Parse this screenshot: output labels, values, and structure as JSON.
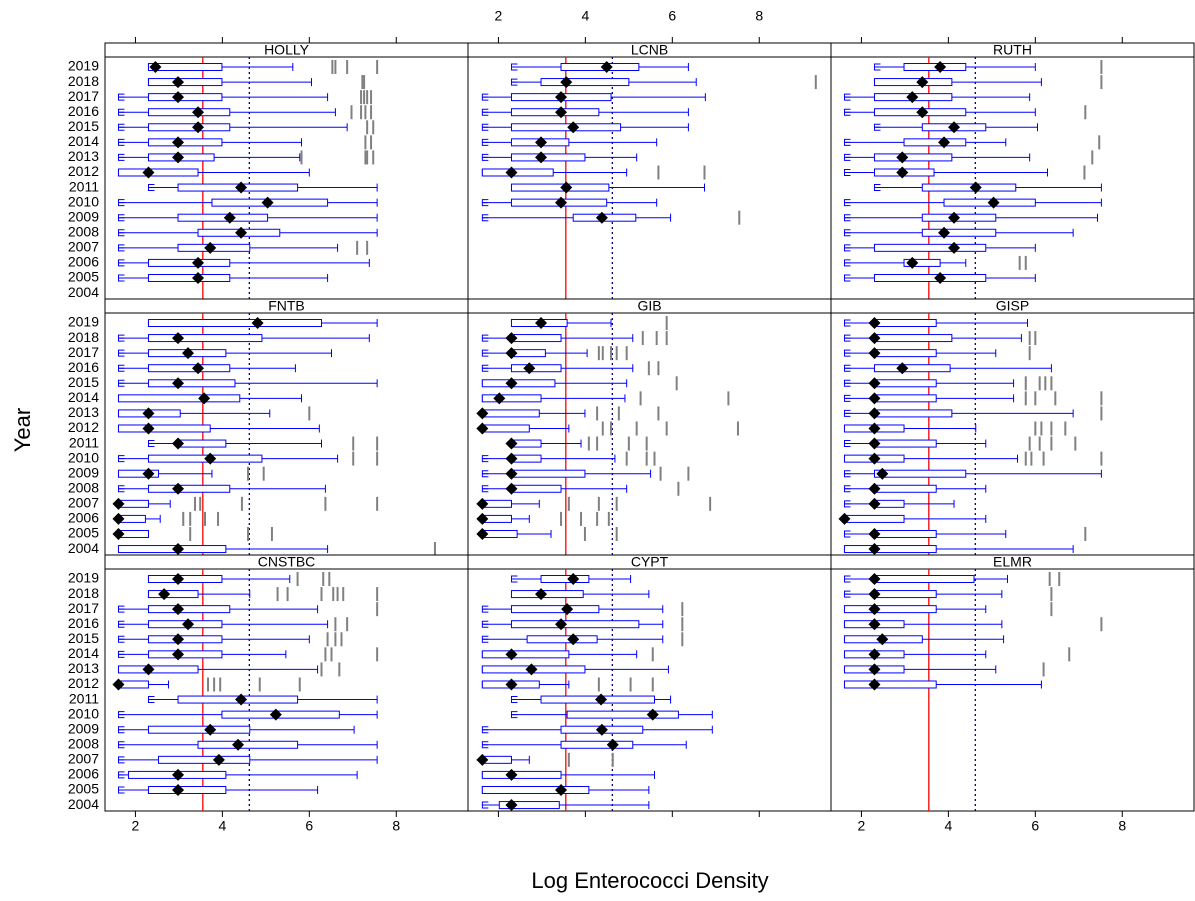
{
  "chart_data": {
    "type": "box",
    "x_label": "Log Enterococci Density",
    "y_label": "Year",
    "categories": [
      "2019",
      "2018",
      "2017",
      "2016",
      "2015",
      "2014",
      "2013",
      "2012",
      "2011",
      "2010",
      "2009",
      "2008",
      "2007",
      "2006",
      "2005",
      "2004"
    ],
    "xlim": [
      1.3,
      9.65
    ],
    "xticks": [
      2,
      4,
      6,
      8
    ],
    "box_color": "#0000ff",
    "median_color": "#000000",
    "outlier_color": "#808080",
    "reference_lines": [
      {
        "value": 3.55,
        "color": "#ff0000"
      },
      {
        "value": 4.62,
        "color": "#00008b",
        "dash": "2,3"
      }
    ],
    "panels": [
      {
        "title": "HOLLY",
        "whisker_low": [
          2.3,
          2.3,
          1.61,
          1.61,
          1.61,
          1.61,
          1.61,
          1.61,
          2.3,
          1.61,
          1.61,
          1.61,
          1.61,
          1.61,
          1.61,
          null
        ],
        "q1": [
          2.3,
          2.3,
          2.3,
          2.3,
          2.3,
          2.3,
          2.3,
          1.61,
          2.98,
          3.76,
          2.98,
          3.44,
          2.98,
          2.3,
          2.3,
          null
        ],
        "median": [
          2.46,
          2.98,
          2.98,
          3.44,
          3.44,
          2.98,
          2.98,
          2.3,
          4.43,
          5.04,
          4.17,
          4.43,
          3.72,
          3.44,
          3.44,
          null
        ],
        "q3": [
          3.99,
          3.99,
          3.99,
          4.17,
          4.17,
          3.99,
          3.81,
          3.44,
          5.73,
          6.42,
          5.04,
          5.32,
          4.63,
          4.17,
          4.17,
          null
        ],
        "whisker_high": [
          5.62,
          6.05,
          6.42,
          6.6,
          6.87,
          5.82,
          5.78,
          6.0,
          7.56,
          7.56,
          7.56,
          7.56,
          6.65,
          7.38,
          6.42,
          null
        ],
        "outliers": [
          [
            6.53,
            6.6,
            6.87,
            7.56
          ],
          [
            7.22,
            7.26
          ],
          [
            7.19,
            7.26,
            7.33,
            7.42
          ],
          [
            6.97,
            7.19,
            7.29,
            7.42
          ],
          [
            7.33,
            7.47
          ],
          [
            7.29,
            7.42
          ],
          [
            5.82,
            7.29,
            7.33,
            7.47
          ],
          [],
          [],
          [],
          [],
          [],
          [
            7.1,
            7.33
          ],
          [],
          [],
          []
        ]
      },
      {
        "title": "LCNB",
        "whisker_low": [
          2.3,
          2.3,
          1.63,
          1.63,
          1.63,
          1.63,
          1.63,
          1.63,
          2.3,
          1.63,
          1.63,
          null,
          null,
          null,
          null,
          null
        ],
        "q1": [
          3.44,
          2.98,
          2.3,
          2.3,
          2.3,
          2.3,
          2.3,
          1.63,
          2.3,
          2.3,
          3.72,
          null,
          null,
          null,
          null,
          null
        ],
        "median": [
          4.49,
          3.56,
          3.44,
          3.44,
          3.72,
          2.98,
          2.98,
          2.3,
          3.56,
          3.44,
          4.38,
          null,
          null,
          null,
          null,
          null
        ],
        "q3": [
          5.23,
          5.0,
          4.59,
          4.31,
          4.81,
          3.62,
          3.99,
          3.26,
          4.54,
          4.49,
          5.16,
          null,
          null,
          null,
          null,
          null
        ],
        "whisker_high": [
          6.37,
          6.55,
          6.76,
          6.37,
          6.37,
          5.64,
          5.18,
          4.95,
          6.74,
          5.64,
          5.96,
          null,
          null,
          null,
          null,
          null
        ],
        "outliers": [
          [],
          [
            9.3
          ],
          [],
          [],
          [],
          [],
          [],
          [
            5.68,
            6.74
          ],
          [],
          [],
          [
            7.54
          ],
          [],
          [],
          [],
          [],
          []
        ]
      },
      {
        "title": "RUTH",
        "whisker_low": [
          2.3,
          2.3,
          1.61,
          1.61,
          2.3,
          1.61,
          1.61,
          1.61,
          2.3,
          1.61,
          1.61,
          1.61,
          1.61,
          1.61,
          1.61,
          null
        ],
        "q1": [
          2.98,
          2.3,
          2.3,
          2.3,
          3.4,
          2.98,
          2.3,
          2.3,
          3.4,
          3.9,
          3.4,
          3.4,
          2.3,
          2.98,
          2.3,
          null
        ],
        "median": [
          3.81,
          3.4,
          3.17,
          3.4,
          4.13,
          3.9,
          2.94,
          2.94,
          4.63,
          5.04,
          4.13,
          3.9,
          4.13,
          3.17,
          3.81,
          null
        ],
        "q3": [
          4.4,
          4.08,
          4.08,
          4.4,
          4.86,
          4.4,
          4.08,
          3.67,
          5.55,
          6.0,
          5.09,
          5.09,
          4.86,
          3.81,
          4.86,
          null
        ],
        "whisker_high": [
          6.0,
          6.14,
          5.87,
          6.0,
          6.05,
          5.32,
          5.87,
          6.28,
          7.52,
          7.52,
          7.43,
          6.87,
          6.0,
          4.4,
          6.0,
          null
        ],
        "outliers": [
          [
            7.52
          ],
          [
            7.52
          ],
          [],
          [
            7.15
          ],
          [],
          [
            7.47
          ],
          [
            7.31
          ],
          [
            7.13
          ],
          [],
          [],
          [],
          [],
          [],
          [
            5.64,
            5.78
          ],
          [],
          []
        ]
      },
      {
        "title": "FNTB",
        "whisker_low": [
          2.3,
          1.61,
          1.61,
          1.61,
          1.61,
          1.61,
          1.61,
          1.61,
          2.3,
          1.61,
          1.61,
          1.61,
          1.61,
          1.61,
          1.61,
          1.61
        ],
        "q1": [
          2.3,
          2.3,
          2.3,
          2.3,
          2.3,
          1.61,
          1.61,
          1.61,
          2.98,
          2.3,
          1.61,
          2.3,
          1.61,
          1.61,
          1.61,
          1.61
        ],
        "median": [
          4.81,
          2.98,
          3.21,
          3.44,
          2.98,
          3.58,
          2.3,
          2.3,
          2.98,
          3.72,
          2.3,
          2.98,
          1.61,
          1.61,
          1.61,
          2.98
        ],
        "q3": [
          6.28,
          4.91,
          4.08,
          4.17,
          4.29,
          4.4,
          3.03,
          3.72,
          4.08,
          4.91,
          2.53,
          4.17,
          2.3,
          2.23,
          2.3,
          4.08
        ],
        "whisker_high": [
          7.56,
          7.38,
          6.51,
          5.68,
          7.56,
          5.82,
          5.09,
          6.23,
          6.28,
          6.65,
          3.76,
          6.37,
          2.8,
          2.57,
          2.3,
          6.42
        ],
        "outliers": [
          [],
          [],
          [],
          [],
          [],
          [],
          [
            6.0
          ],
          [],
          [
            7.01,
            7.56
          ],
          [
            7.01,
            7.56
          ],
          [
            4.59,
            4.95
          ],
          [],
          [
            3.37,
            3.49,
            4.45,
            6.37,
            7.56
          ],
          [
            3.1,
            3.26,
            3.6,
            3.9
          ],
          [
            3.26,
            4.59,
            5.14
          ],
          [
            8.89
          ]
        ]
      },
      {
        "title": "GIB",
        "whisker_low": [
          2.3,
          1.63,
          1.63,
          1.63,
          1.63,
          1.63,
          1.63,
          1.63,
          2.3,
          1.63,
          1.63,
          1.63,
          1.63,
          1.63,
          1.63,
          null
        ],
        "q1": [
          2.3,
          2.3,
          2.3,
          2.3,
          1.63,
          1.63,
          1.63,
          1.63,
          2.3,
          2.3,
          2.3,
          2.3,
          1.63,
          1.63,
          1.63,
          null
        ],
        "median": [
          2.98,
          2.3,
          2.3,
          2.71,
          2.3,
          2.02,
          1.63,
          1.63,
          2.3,
          2.3,
          2.3,
          2.3,
          1.63,
          1.63,
          1.63,
          null
        ],
        "q3": [
          3.58,
          3.44,
          3.08,
          3.44,
          3.3,
          2.98,
          2.94,
          2.71,
          2.98,
          2.98,
          3.99,
          3.44,
          2.3,
          2.3,
          2.43,
          null
        ],
        "whisker_high": [
          4.59,
          5.09,
          4.04,
          5.09,
          4.95,
          4.91,
          3.99,
          3.62,
          3.9,
          4.68,
          5.5,
          4.95,
          2.94,
          2.71,
          3.21,
          null
        ],
        "outliers": [
          [
            5.87
          ],
          [
            5.32,
            5.64,
            5.87
          ],
          [
            4.31,
            4.4,
            4.59,
            4.72,
            4.95
          ],
          [
            5.46,
            5.68
          ],
          [
            6.1
          ],
          [
            5.27,
            7.29
          ],
          [
            4.27,
            4.77,
            5.68
          ],
          [
            4.4,
            4.59,
            5.18,
            5.87,
            7.51
          ],
          [
            4.08,
            4.27,
            5.0,
            5.41
          ],
          [
            4.95,
            5.41,
            5.59
          ],
          [
            5.73,
            6.37
          ],
          [
            6.14
          ],
          [
            3.62,
            4.31,
            4.72,
            6.87
          ],
          [
            3.44,
            3.9,
            4.27,
            4.54
          ],
          [
            3.99,
            4.72
          ],
          []
        ]
      },
      {
        "title": "GISP",
        "whisker_low": [
          1.61,
          1.61,
          1.61,
          1.61,
          1.61,
          1.61,
          1.61,
          1.61,
          1.61,
          1.61,
          1.61,
          1.61,
          1.61,
          1.61,
          1.61,
          1.61
        ],
        "q1": [
          2.3,
          2.3,
          2.3,
          2.3,
          2.3,
          2.3,
          2.3,
          1.61,
          2.3,
          1.61,
          2.3,
          2.3,
          2.3,
          1.61,
          2.3,
          1.61
        ],
        "median": [
          2.3,
          2.3,
          2.3,
          2.94,
          2.3,
          2.3,
          2.3,
          2.3,
          2.3,
          2.3,
          2.48,
          2.3,
          2.3,
          1.61,
          2.3,
          2.3
        ],
        "q3": [
          3.72,
          4.08,
          3.72,
          4.04,
          3.72,
          3.72,
          4.08,
          2.98,
          3.72,
          2.98,
          4.4,
          3.72,
          2.98,
          2.98,
          3.72,
          3.72
        ],
        "whisker_high": [
          5.82,
          5.68,
          5.09,
          6.37,
          5.5,
          5.5,
          6.87,
          4.63,
          4.86,
          5.59,
          7.52,
          4.86,
          4.13,
          4.86,
          5.32,
          6.87
        ],
        "outliers": [
          [],
          [
            5.87,
            6.0
          ],
          [
            5.87
          ],
          [],
          [
            5.78,
            6.1,
            6.23,
            6.37
          ],
          [
            5.78,
            6.0,
            6.46,
            7.52
          ],
          [
            7.52
          ],
          [
            6.0,
            6.14,
            6.37,
            6.69
          ],
          [
            5.87,
            6.1,
            6.37,
            6.92
          ],
          [
            5.78,
            5.91,
            6.19,
            7.52
          ],
          [],
          [],
          [],
          [],
          [
            7.15
          ],
          []
        ]
      },
      {
        "title": "CNSTBC",
        "whisker_low": [
          2.3,
          2.3,
          1.61,
          1.61,
          1.61,
          1.61,
          1.61,
          1.61,
          2.3,
          1.61,
          1.61,
          1.61,
          1.61,
          1.61,
          1.61,
          null
        ],
        "q1": [
          2.3,
          2.3,
          2.3,
          2.3,
          2.3,
          2.3,
          1.61,
          1.61,
          2.98,
          3.99,
          2.3,
          3.44,
          2.53,
          1.84,
          2.3,
          null
        ],
        "median": [
          2.98,
          2.66,
          2.98,
          3.21,
          2.98,
          2.98,
          2.3,
          1.61,
          4.43,
          5.23,
          3.72,
          4.36,
          3.92,
          2.98,
          2.98,
          null
        ],
        "q3": [
          3.99,
          3.44,
          4.17,
          3.99,
          3.99,
          3.99,
          3.44,
          2.3,
          5.73,
          6.69,
          4.63,
          5.73,
          4.63,
          4.08,
          4.08,
          null
        ],
        "whisker_high": [
          5.55,
          4.63,
          6.19,
          6.42,
          6.0,
          5.46,
          6.19,
          2.76,
          7.56,
          7.56,
          7.03,
          7.56,
          7.56,
          7.1,
          6.19,
          null
        ],
        "outliers": [
          [
            5.73,
            6.32,
            6.46
          ],
          [
            5.27,
            5.5,
            6.28,
            6.55,
            6.65,
            6.78,
            7.56
          ],
          [
            7.56
          ],
          [
            6.6,
            6.87
          ],
          [
            6.42,
            6.6,
            6.74
          ],
          [
            6.37,
            6.51,
            7.56
          ],
          [
            6.28,
            6.69
          ],
          [
            3.67,
            3.81,
            3.95,
            4.86,
            5.78
          ],
          [],
          [],
          [],
          [],
          [],
          [],
          [],
          []
        ]
      },
      {
        "title": "CYPT",
        "whisker_low": [
          2.3,
          2.3,
          1.63,
          1.63,
          1.63,
          1.63,
          1.63,
          1.63,
          2.3,
          2.3,
          1.63,
          1.63,
          1.63,
          1.63,
          1.63,
          1.63
        ],
        "q1": [
          2.98,
          2.3,
          2.3,
          2.3,
          2.66,
          1.63,
          1.63,
          1.63,
          2.98,
          3.58,
          3.44,
          3.44,
          1.63,
          1.63,
          1.63,
          2.02
        ],
        "median": [
          3.72,
          2.98,
          3.58,
          3.44,
          3.72,
          2.3,
          2.76,
          2.3,
          4.36,
          5.55,
          4.38,
          4.63,
          1.63,
          2.3,
          3.44,
          2.3
        ],
        "q3": [
          4.08,
          3.95,
          4.31,
          5.23,
          4.27,
          3.62,
          3.99,
          2.94,
          5.59,
          6.14,
          5.32,
          5.09,
          2.3,
          3.44,
          4.08,
          3.4
        ],
        "whisker_high": [
          5.04,
          5.46,
          5.78,
          5.78,
          5.78,
          5.18,
          5.91,
          3.62,
          5.96,
          6.92,
          6.92,
          6.32,
          2.71,
          5.59,
          5.46,
          5.46
        ],
        "outliers": [
          [],
          [],
          [
            6.23
          ],
          [
            6.23
          ],
          [
            6.23
          ],
          [
            5.55
          ],
          [],
          [
            4.31,
            5.04,
            5.55
          ],
          [],
          [],
          [],
          [],
          [
            3.62,
            4.63
          ],
          [],
          [],
          []
        ]
      },
      {
        "title": "ELMR",
        "whisker_low": [
          1.61,
          1.61,
          1.61,
          1.61,
          1.61,
          1.61,
          1.61,
          1.61,
          null,
          null,
          null,
          null,
          null,
          null,
          null,
          null
        ],
        "q1": [
          2.3,
          2.3,
          1.61,
          1.61,
          1.61,
          1.61,
          1.61,
          1.61,
          null,
          null,
          null,
          null,
          null,
          null,
          null,
          null
        ],
        "median": [
          2.3,
          2.3,
          2.3,
          2.3,
          2.48,
          2.3,
          2.3,
          2.3,
          null,
          null,
          null,
          null,
          null,
          null,
          null,
          null
        ],
        "q3": [
          4.59,
          3.72,
          3.72,
          2.98,
          3.4,
          2.98,
          2.98,
          3.72,
          null,
          null,
          null,
          null,
          null,
          null,
          null,
          null
        ],
        "whisker_high": [
          5.36,
          5.23,
          4.86,
          5.23,
          5.27,
          4.86,
          5.09,
          6.14,
          null,
          null,
          null,
          null,
          null,
          null,
          null,
          null
        ],
        "outliers": [
          [
            6.33,
            6.55
          ],
          [
            6.37
          ],
          [
            6.37
          ],
          [
            7.52
          ],
          [],
          [
            6.78
          ],
          [
            6.19
          ],
          [],
          [],
          [],
          [],
          [],
          [],
          [],
          [],
          []
        ]
      }
    ]
  }
}
